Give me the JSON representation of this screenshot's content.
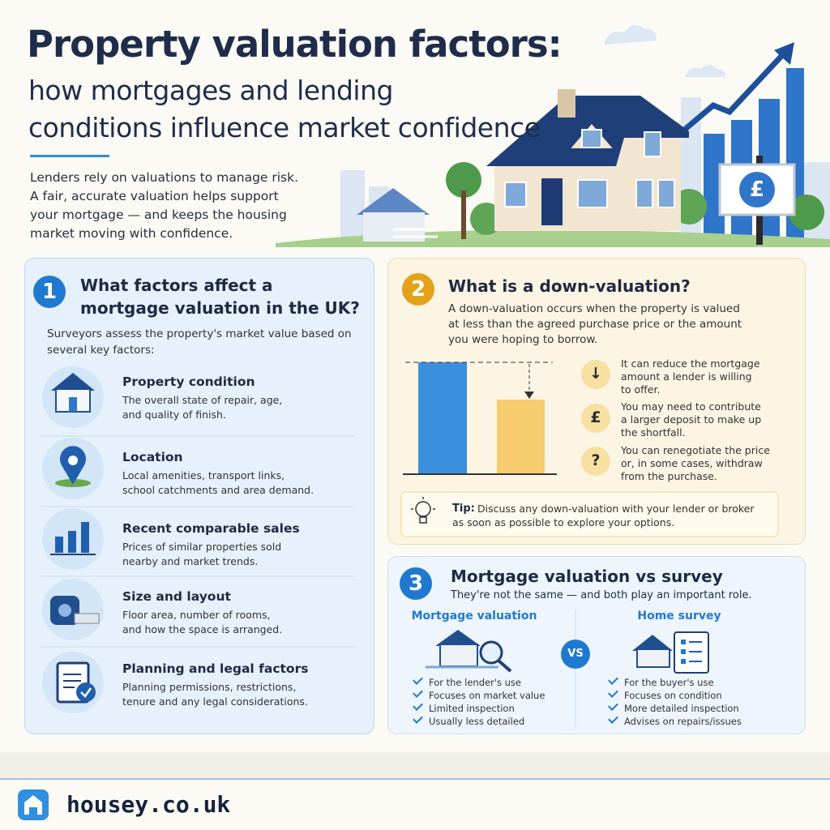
{
  "header": {
    "title": "Property valuation factors:",
    "subtitle_lines": [
      "how mortgages and lending",
      "conditions influence market confidence"
    ],
    "intro_lines": [
      "Lenders rely on valuations to manage risk.",
      "A fair, accurate valuation helps support",
      "your mortgage — and keeps the housing",
      "market moving with confidence."
    ],
    "sign_symbol": "£"
  },
  "section1": {
    "number": "1",
    "title_lines": [
      "What factors affect a",
      "mortgage valuation in the UK?"
    ],
    "intro_lines": [
      "Surveyors assess the property's market value based on",
      "several key factors:"
    ],
    "factors": [
      {
        "title": "Property condition",
        "description_lines": [
          "The overall state of repair, age,",
          "and quality of finish."
        ]
      },
      {
        "title": "Location",
        "description_lines": [
          "Local amenities, transport links,",
          "school catchments and area demand."
        ]
      },
      {
        "title": "Recent comparable sales",
        "description_lines": [
          "Prices of similar properties sold",
          "nearby and market trends."
        ]
      },
      {
        "title": "Size and layout",
        "description_lines": [
          "Floor area, number of rooms,",
          "and how the space is arranged."
        ]
      },
      {
        "title": "Planning and legal factors",
        "description_lines": [
          "Planning permissions, restrictions,",
          "tenure and any legal considerations."
        ]
      }
    ]
  },
  "section2": {
    "number": "2",
    "title": "What is a down-valuation?",
    "intro_lines": [
      "A down-valuation occurs when the property is valued",
      "at less than the agreed purchase price or the amount",
      "you were hoping to borrow."
    ],
    "points": [
      {
        "icon": "↓",
        "text_lines": [
          "It can reduce the mortgage",
          "amount a lender is willing",
          "to offer."
        ]
      },
      {
        "icon": "£",
        "text_lines": [
          "You may need to contribute",
          "a larger deposit to make up",
          "the shortfall."
        ]
      },
      {
        "icon": "?",
        "text_lines": [
          "You can renegotiate the price",
          "or, in some cases, withdraw",
          "from the purchase."
        ]
      }
    ],
    "tip_label": "Tip:",
    "tip_lines": [
      "Discuss any down-valuation with your lender or broker",
      "as soon as possible to explore your options."
    ]
  },
  "section3": {
    "number": "3",
    "title": "Mortgage valuation vs survey",
    "subtitle": "They're not the same — and both play an important role.",
    "vs": "VS",
    "columns": [
      {
        "title": "Mortgage valuation",
        "items": [
          "For the lender's use",
          "Focuses on market value",
          "Limited inspection",
          "Usually less detailed"
        ]
      },
      {
        "title": "Home survey",
        "items": [
          "For the buyer's use",
          "Focuses on condition",
          "More detailed inspection",
          "Advises on repairs/issues"
        ]
      }
    ]
  },
  "footer": {
    "brand": "housey.co.uk"
  }
}
